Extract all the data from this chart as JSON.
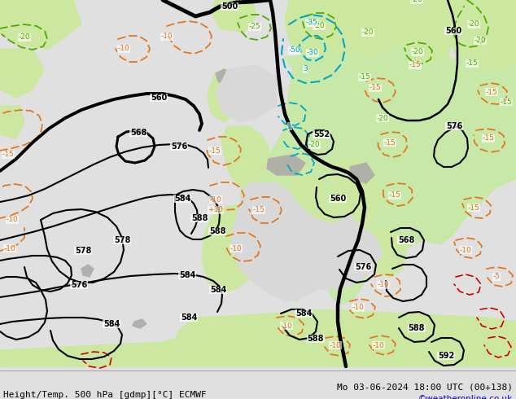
{
  "title_left": "Height/Temp. 500 hPa [gdmp][°C] ECMWF",
  "title_right": "Mo 03-06-2024 18:00 UTC (00+138)",
  "watermark": "©weatheronline.co.uk",
  "bg_ocean": "#e8e8e8",
  "bg_land_green": "#c8e8b0",
  "bg_land_green2": "#d4ecc0",
  "bg_gray_coast": "#b8b8b8",
  "z500_color": "#000000",
  "temp_orange": "#e07820",
  "temp_green": "#50aa00",
  "rain_cyan": "#00a8c8",
  "warm_red": "#cc0000",
  "fig_width": 6.34,
  "fig_height": 4.9,
  "dpi": 100
}
